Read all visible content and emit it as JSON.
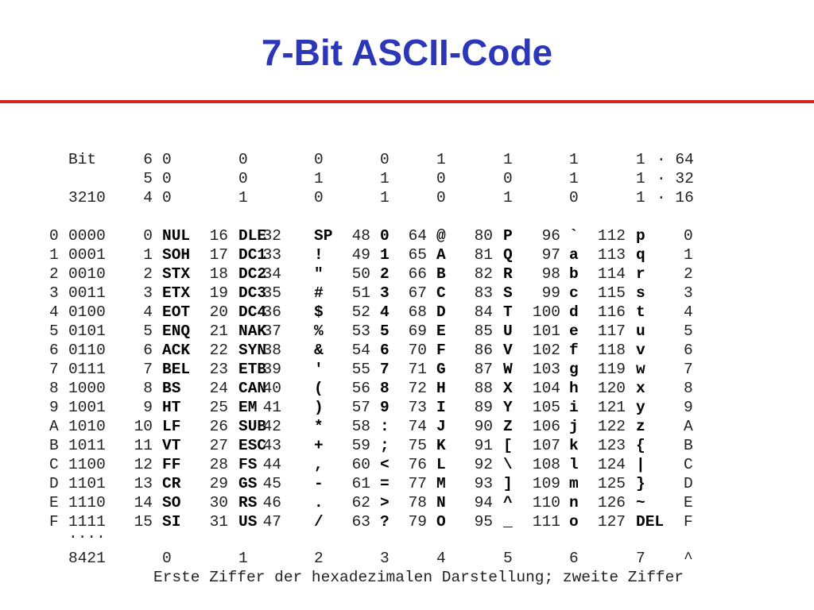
{
  "header": {
    "title": "7-Bit ASCII-Code"
  },
  "table": {
    "bit_rows": [
      {
        "label": "Bit",
        "bit": "6",
        "values": [
          "0",
          "0",
          "0",
          "0",
          "1",
          "1",
          "1",
          "1"
        ],
        "weight": "· 64"
      },
      {
        "bit": "5",
        "values": [
          "0",
          "0",
          "1",
          "1",
          "0",
          "0",
          "1",
          "1"
        ],
        "weight": "· 32"
      },
      {
        "label": "3210",
        "bit": "4",
        "values": [
          "0",
          "1",
          "0",
          "1",
          "0",
          "1",
          "0",
          "1"
        ],
        "weight": "· 16"
      }
    ],
    "rows": [
      {
        "hex": "0",
        "bin": "0000",
        "cells": [
          [
            "0",
            "NUL"
          ],
          [
            "16",
            "DLE"
          ],
          [
            "32",
            "SP"
          ],
          [
            "48",
            "0"
          ],
          [
            "64",
            "@"
          ],
          [
            "80",
            "P"
          ],
          [
            "96",
            "`"
          ],
          [
            "112",
            "p"
          ]
        ],
        "hex_right": "0"
      },
      {
        "hex": "1",
        "bin": "0001",
        "cells": [
          [
            "1",
            "SOH"
          ],
          [
            "17",
            "DC1"
          ],
          [
            "33",
            "!"
          ],
          [
            "49",
            "1"
          ],
          [
            "65",
            "A"
          ],
          [
            "81",
            "Q"
          ],
          [
            "97",
            "a"
          ],
          [
            "113",
            "q"
          ]
        ],
        "hex_right": "1"
      },
      {
        "hex": "2",
        "bin": "0010",
        "cells": [
          [
            "2",
            "STX"
          ],
          [
            "18",
            "DC2"
          ],
          [
            "34",
            "\""
          ],
          [
            "50",
            "2"
          ],
          [
            "66",
            "B"
          ],
          [
            "82",
            "R"
          ],
          [
            "98",
            "b"
          ],
          [
            "114",
            "r"
          ]
        ],
        "hex_right": "2"
      },
      {
        "hex": "3",
        "bin": "0011",
        "cells": [
          [
            "3",
            "ETX"
          ],
          [
            "19",
            "DC3"
          ],
          [
            "35",
            "#"
          ],
          [
            "51",
            "3"
          ],
          [
            "67",
            "C"
          ],
          [
            "83",
            "S"
          ],
          [
            "99",
            "c"
          ],
          [
            "115",
            "s"
          ]
        ],
        "hex_right": "3"
      },
      {
        "hex": "4",
        "bin": "0100",
        "cells": [
          [
            "4",
            "EOT"
          ],
          [
            "20",
            "DC4"
          ],
          [
            "36",
            "$"
          ],
          [
            "52",
            "4"
          ],
          [
            "68",
            "D"
          ],
          [
            "84",
            "T"
          ],
          [
            "100",
            "d"
          ],
          [
            "116",
            "t"
          ]
        ],
        "hex_right": "4"
      },
      {
        "hex": "5",
        "bin": "0101",
        "cells": [
          [
            "5",
            "ENQ"
          ],
          [
            "21",
            "NAK"
          ],
          [
            "37",
            "%"
          ],
          [
            "53",
            "5"
          ],
          [
            "69",
            "E"
          ],
          [
            "85",
            "U"
          ],
          [
            "101",
            "e"
          ],
          [
            "117",
            "u"
          ]
        ],
        "hex_right": "5"
      },
      {
        "hex": "6",
        "bin": "0110",
        "cells": [
          [
            "6",
            "ACK"
          ],
          [
            "22",
            "SYN"
          ],
          [
            "38",
            "&"
          ],
          [
            "54",
            "6"
          ],
          [
            "70",
            "F"
          ],
          [
            "86",
            "V"
          ],
          [
            "102",
            "f"
          ],
          [
            "118",
            "v"
          ]
        ],
        "hex_right": "6"
      },
      {
        "hex": "7",
        "bin": "0111",
        "cells": [
          [
            "7",
            "BEL"
          ],
          [
            "23",
            "ETB"
          ],
          [
            "39",
            "'"
          ],
          [
            "55",
            "7"
          ],
          [
            "71",
            "G"
          ],
          [
            "87",
            "W"
          ],
          [
            "103",
            "g"
          ],
          [
            "119",
            "w"
          ]
        ],
        "hex_right": "7"
      },
      {
        "hex": "8",
        "bin": "1000",
        "cells": [
          [
            "8",
            "BS"
          ],
          [
            "24",
            "CAN"
          ],
          [
            "40",
            "("
          ],
          [
            "56",
            "8"
          ],
          [
            "72",
            "H"
          ],
          [
            "88",
            "X"
          ],
          [
            "104",
            "h"
          ],
          [
            "120",
            "x"
          ]
        ],
        "hex_right": "8"
      },
      {
        "hex": "9",
        "bin": "1001",
        "cells": [
          [
            "9",
            "HT"
          ],
          [
            "25",
            "EM"
          ],
          [
            "41",
            ")"
          ],
          [
            "57",
            "9"
          ],
          [
            "73",
            "I"
          ],
          [
            "89",
            "Y"
          ],
          [
            "105",
            "i"
          ],
          [
            "121",
            "y"
          ]
        ],
        "hex_right": "9"
      },
      {
        "hex": "A",
        "bin": "1010",
        "cells": [
          [
            "10",
            "LF"
          ],
          [
            "26",
            "SUB"
          ],
          [
            "42",
            "*"
          ],
          [
            "58",
            ":"
          ],
          [
            "74",
            "J"
          ],
          [
            "90",
            "Z"
          ],
          [
            "106",
            "j"
          ],
          [
            "122",
            "z"
          ]
        ],
        "hex_right": "A"
      },
      {
        "hex": "B",
        "bin": "1011",
        "cells": [
          [
            "11",
            "VT"
          ],
          [
            "27",
            "ESC"
          ],
          [
            "43",
            "+"
          ],
          [
            "59",
            ";"
          ],
          [
            "75",
            "K"
          ],
          [
            "91",
            "["
          ],
          [
            "107",
            "k"
          ],
          [
            "123",
            "{"
          ]
        ],
        "hex_right": "B"
      },
      {
        "hex": "C",
        "bin": "1100",
        "cells": [
          [
            "12",
            "FF"
          ],
          [
            "28",
            "FS"
          ],
          [
            "44",
            ","
          ],
          [
            "60",
            "<"
          ],
          [
            "76",
            "L"
          ],
          [
            "92",
            "\\"
          ],
          [
            "108",
            "l"
          ],
          [
            "124",
            "|"
          ]
        ],
        "hex_right": "C"
      },
      {
        "hex": "D",
        "bin": "1101",
        "cells": [
          [
            "13",
            "CR"
          ],
          [
            "29",
            "GS"
          ],
          [
            "45",
            "-"
          ],
          [
            "61",
            "="
          ],
          [
            "77",
            "M"
          ],
          [
            "93",
            "]"
          ],
          [
            "109",
            "m"
          ],
          [
            "125",
            "}"
          ]
        ],
        "hex_right": "D"
      },
      {
        "hex": "E",
        "bin": "1110",
        "cells": [
          [
            "14",
            "SO"
          ],
          [
            "30",
            "RS"
          ],
          [
            "46",
            "."
          ],
          [
            "62",
            ">"
          ],
          [
            "78",
            "N"
          ],
          [
            "94",
            "^"
          ],
          [
            "110",
            "n"
          ],
          [
            "126",
            "~"
          ]
        ],
        "hex_right": "E"
      },
      {
        "hex": "F",
        "bin": "1111",
        "cells": [
          [
            "15",
            "SI"
          ],
          [
            "31",
            "US"
          ],
          [
            "47",
            "/"
          ],
          [
            "63",
            "?"
          ],
          [
            "79",
            "O"
          ],
          [
            "95",
            "_"
          ],
          [
            "111",
            "o"
          ],
          [
            "127",
            "DEL"
          ]
        ],
        "hex_right": "F"
      }
    ],
    "dots": "····",
    "weights": "8421",
    "high_digits": [
      "0",
      "1",
      "2",
      "3",
      "4",
      "5",
      "6",
      "7"
    ],
    "caret": "^",
    "caption": "Erste Ziffer der hexadezimalen Darstellung; zweite Ziffer"
  }
}
